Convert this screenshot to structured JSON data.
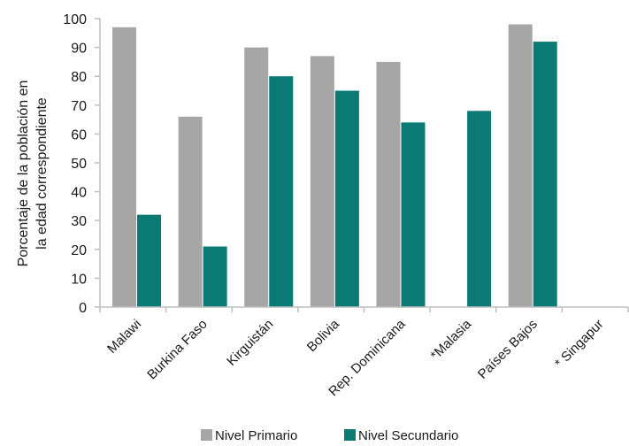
{
  "chart_data": {
    "type": "bar",
    "categories": [
      "Malawi",
      "Burkina Faso",
      "Kirguistán",
      "Bolivia",
      "Rep. Dominicana",
      "*Malasia",
      "Países Bajos",
      "* Singapur"
    ],
    "series": [
      {
        "name": "Nivel Primario",
        "values": [
          97,
          66,
          90,
          87,
          85,
          null,
          98,
          null
        ]
      },
      {
        "name": "Nivel Secundario",
        "values": [
          32,
          21,
          80,
          75,
          64,
          68,
          92,
          null
        ]
      }
    ],
    "ylabel_lines": [
      "Porcentaje de la población en",
      "la edad correspondiente"
    ],
    "xlabel": "",
    "ylim": [
      0,
      100
    ],
    "yticks": [
      0,
      10,
      20,
      30,
      40,
      50,
      60,
      70,
      80,
      90,
      100
    ],
    "grid": false,
    "legend_position": "bottom-center",
    "colors": {
      "Nivel Primario": "#a6a6a6",
      "Nivel Secundario": "#0b7a75",
      "axis": "#bfbfbf"
    }
  }
}
